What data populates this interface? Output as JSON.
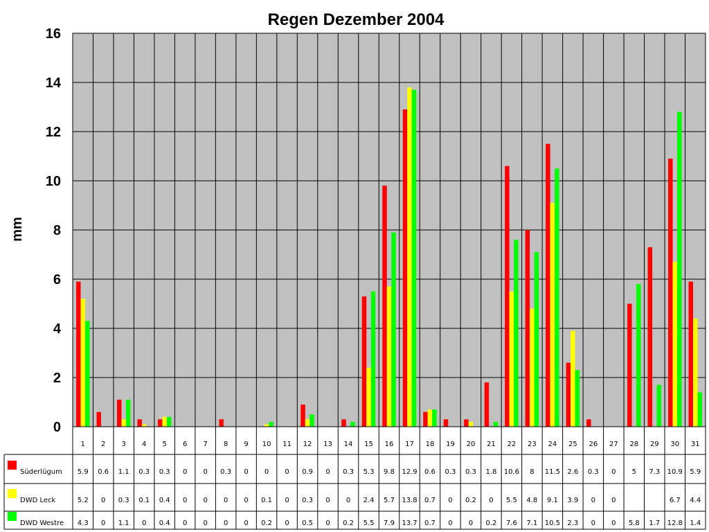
{
  "chart_data": {
    "type": "bar",
    "title": "Regen Dezember 2004",
    "ylabel": "mm",
    "xlabel": "",
    "ylim": [
      0,
      16
    ],
    "yticks": [
      "0",
      "2",
      "4",
      "6",
      "8",
      "10",
      "12",
      "14",
      "16"
    ],
    "grid": true,
    "legend_position": "data table below chart",
    "plot_background": "#c0c0c0",
    "categories": [
      "1",
      "2",
      "3",
      "4",
      "5",
      "6",
      "7",
      "8",
      "9",
      "10",
      "11",
      "12",
      "13",
      "14",
      "15",
      "16",
      "17",
      "18",
      "19",
      "20",
      "21",
      "22",
      "23",
      "24",
      "25",
      "26",
      "27",
      "28",
      "29",
      "30",
      "31"
    ],
    "series": [
      {
        "name": "Süderlügum",
        "color": "#ff0000",
        "values": [
          5.9,
          0.6,
          1.1,
          0.3,
          0.3,
          0,
          0,
          0.3,
          0,
          0,
          0,
          0.9,
          0,
          0.3,
          5.3,
          9.8,
          12.9,
          0.6,
          0.3,
          0.3,
          1.8,
          10.6,
          8,
          11.5,
          2.6,
          0.3,
          0,
          5,
          7.3,
          10.9,
          5.9
        ],
        "labels": [
          "5.9",
          "0.6",
          "1.1",
          "0.3",
          "0.3",
          "0",
          "0",
          "0.3",
          "0",
          "0",
          "0",
          "0.9",
          "0",
          "0.3",
          "5.3",
          "9.8",
          "12.9",
          "0.6",
          "0.3",
          "0.3",
          "1.8",
          "10.6",
          "8",
          "11.5",
          "2.6",
          "0.3",
          "0",
          "5",
          "7.3",
          "10.9",
          "5.9"
        ]
      },
      {
        "name": "DWD Leck",
        "color": "#ffff00",
        "values": [
          5.2,
          0,
          0.3,
          0.1,
          0.4,
          0,
          0,
          0,
          0,
          0.1,
          0,
          0.3,
          0,
          0,
          2.4,
          5.7,
          13.8,
          0.7,
          0,
          0.2,
          0,
          5.5,
          4.8,
          9.1,
          3.9,
          0,
          0,
          null,
          null,
          6.7,
          4.4
        ],
        "labels": [
          "5.2",
          "0",
          "0.3",
          "0.1",
          "0.4",
          "0",
          "0",
          "0",
          "0",
          "0.1",
          "0",
          "0.3",
          "0",
          "0",
          "2.4",
          "5.7",
          "13.8",
          "0.7",
          "0",
          "0.2",
          "0",
          "5.5",
          "4.8",
          "9.1",
          "3.9",
          "0",
          "0",
          "",
          "",
          "6.7",
          "4.4"
        ]
      },
      {
        "name": "DWD Westre",
        "color": "#00ff00",
        "values": [
          4.3,
          0,
          1.1,
          0,
          0.4,
          0,
          0,
          0,
          0,
          0.2,
          0,
          0.5,
          0,
          0.2,
          5.5,
          7.9,
          13.7,
          0.7,
          0,
          0,
          0.2,
          7.6,
          7.1,
          10.5,
          2.3,
          0,
          0,
          5.8,
          1.7,
          12.8,
          1.4
        ],
        "labels": [
          "4.3",
          "0",
          "1.1",
          "0",
          "0.4",
          "0",
          "0",
          "0",
          "0",
          "0.2",
          "0",
          "0.5",
          "0",
          "0.2",
          "5.5",
          "7.9",
          "13.7",
          "0.7",
          "0",
          "0",
          "0.2",
          "7.6",
          "7.1",
          "10.5",
          "2.3",
          "0",
          "0",
          "5.8",
          "1.7",
          "12.8",
          "1.4"
        ]
      }
    ]
  }
}
